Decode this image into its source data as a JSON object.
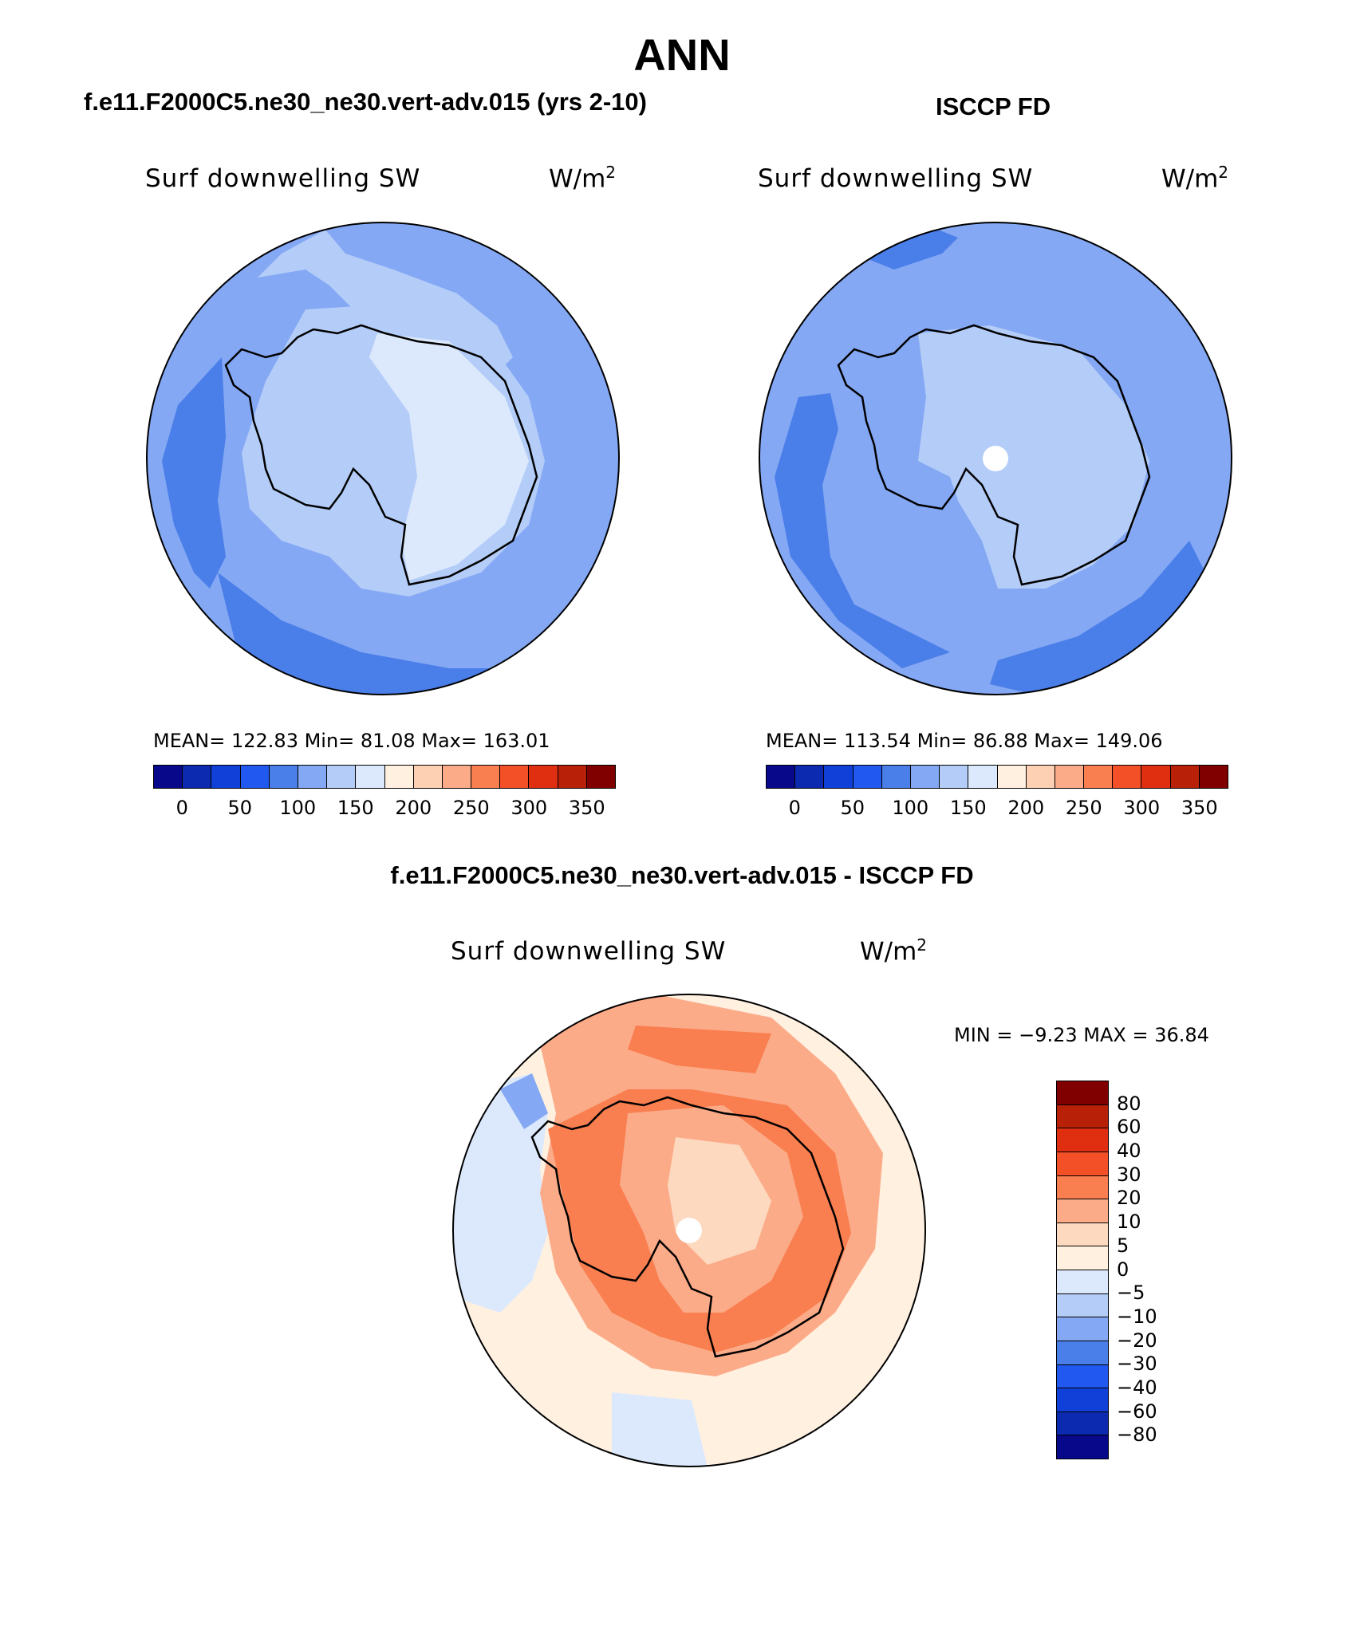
{
  "title": "ANN",
  "panels": [
    {
      "title": "f.e11.F2000C5.ne30_ne30.vert-adv.015 (yrs 2-10)",
      "variable": "Surf downwelling SW",
      "units": "W/m",
      "units_sup": "2",
      "stats": "MEAN= 122.83   Min=   81.08   Max= 163.01",
      "colorbar_ticks": [
        "0",
        "50",
        "100",
        "150",
        "200",
        "250",
        "300",
        "350"
      ]
    },
    {
      "title": "ISCCP FD",
      "variable": "Surf downwelling SW",
      "units": "W/m",
      "units_sup": "2",
      "stats": "MEAN= 113.54   Min=   86.88   Max= 149.06",
      "colorbar_ticks": [
        "0",
        "50",
        "100",
        "150",
        "200",
        "250",
        "300",
        "350"
      ]
    }
  ],
  "diff": {
    "title": "f.e11.F2000C5.ne30_ne30.vert-adv.015 - ISCCP FD",
    "variable": "Surf downwelling SW",
    "units": "W/m",
    "units_sup": "2",
    "minmax": "MIN =   −9.23  MAX =   36.84",
    "colorbar_ticks": [
      "80",
      "60",
      "40",
      "30",
      "20",
      "10",
      "5",
      "0",
      "−5",
      "−10",
      "−20",
      "−30",
      "−40",
      "−60",
      "−80"
    ]
  },
  "colors": {
    "abs_scale": [
      "#08088a",
      "#0c2ab0",
      "#1040d8",
      "#2058f0",
      "#4a7ee8",
      "#84a8f4",
      "#b4cdf8",
      "#dce9fc",
      "#fff0e0",
      "#fdd0b4",
      "#fcab88",
      "#f97e50",
      "#f45028",
      "#e02e10",
      "#b82008",
      "#800000"
    ],
    "diff_scale": [
      "#800000",
      "#b82008",
      "#e02e10",
      "#f45028",
      "#f97e50",
      "#fcab88",
      "#fdd9c0",
      "#fff0e0",
      "#dce9fc",
      "#b4cdf8",
      "#84a8f4",
      "#4a7ee8",
      "#2058f0",
      "#1040d8",
      "#0c2ab0",
      "#08088a"
    ]
  }
}
